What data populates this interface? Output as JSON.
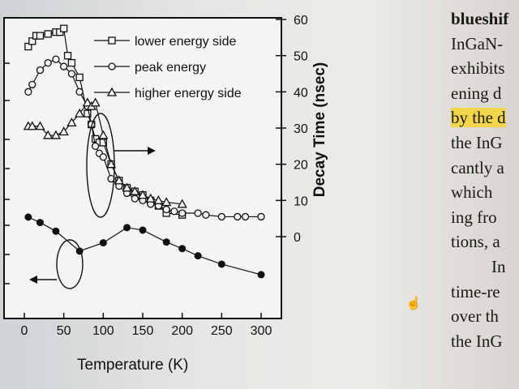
{
  "chart_data": {
    "type": "scatter",
    "title": "",
    "xlabel": "Temperature (K)",
    "ylabel_right": "Decay Time (nsec)",
    "xlim": [
      -10,
      330
    ],
    "ylim_right": [
      -10,
      60
    ],
    "x_ticks": [
      0,
      50,
      100,
      150,
      200,
      250,
      300
    ],
    "y_right_ticks": [
      0,
      10,
      20,
      30,
      40,
      50,
      60
    ],
    "legend_position": "top-right",
    "series": [
      {
        "name": "lower energy side",
        "marker": "square",
        "axis": "right",
        "x": [
          5,
          10,
          15,
          20,
          30,
          40,
          45,
          50,
          55,
          60,
          70,
          80,
          85,
          90,
          95,
          100,
          110,
          120,
          130,
          140,
          150,
          160,
          170,
          180,
          200
        ],
        "y": [
          52.5,
          54,
          55.5,
          55.5,
          56,
          56.5,
          56.5,
          57.5,
          50,
          48,
          44,
          34,
          31,
          27,
          26,
          26,
          20,
          15.5,
          13.5,
          12.5,
          11.5,
          10,
          8.5,
          6.5,
          6
        ]
      },
      {
        "name": "peak energy",
        "marker": "circle",
        "axis": "right",
        "x": [
          5,
          10,
          20,
          30,
          40,
          50,
          60,
          70,
          80,
          85,
          90,
          95,
          100,
          110,
          120,
          130,
          140,
          150,
          160,
          170,
          180,
          190,
          200,
          220,
          230,
          250,
          270,
          280,
          300
        ],
        "y": [
          40,
          42,
          46,
          48,
          49,
          47,
          45,
          40,
          36,
          31,
          25,
          23,
          22,
          16,
          14,
          12,
          10.5,
          10,
          9,
          8.5,
          7.5,
          7,
          6.5,
          6.5,
          6,
          5.5,
          5.5,
          5.5,
          5.5
        ]
      },
      {
        "name": "higher energy side",
        "marker": "triangle",
        "axis": "right",
        "x": [
          5,
          10,
          20,
          30,
          40,
          50,
          60,
          70,
          80,
          85,
          90,
          100,
          110,
          120,
          130,
          140,
          150,
          160,
          170,
          180,
          200
        ],
        "y": [
          30.5,
          30.5,
          30.5,
          28,
          28,
          29,
          31.5,
          34,
          37,
          36,
          37,
          28,
          20,
          15.5,
          13.5,
          12.5,
          11.5,
          10.5,
          10,
          9.5,
          9
        ]
      },
      {
        "name": "",
        "marker": "filled-circle",
        "axis": "left",
        "x": [
          5,
          20,
          40,
          70,
          90,
          100,
          110,
          130,
          150,
          170,
          200,
          220,
          250,
          300
        ],
        "y": [
          266,
          274,
          286,
          330,
          320,
          302,
          288,
          286,
          306,
          316,
          328,
          338,
          370,
          0
        ],
        "y_pixels_note": ""
      }
    ],
    "filled_series": {
      "x": [
        5,
        20,
        40,
        70,
        100,
        130,
        150,
        180,
        200,
        220,
        250,
        300
      ],
      "y": [
        5.4,
        3.9,
        1.5,
        -4.0,
        -1.7,
        2.5,
        1.8,
        -1.5,
        -3.3,
        -5.3,
        -7.6,
        -10.5
      ]
    },
    "annotations": [
      {
        "type": "ellipse-with-arrow",
        "target": "decay-time curves",
        "arrow_direction": "right"
      },
      {
        "type": "ellipse-with-arrow",
        "target": "filled-circle curve",
        "arrow_direction": "left"
      }
    ]
  },
  "book_text": {
    "lines": [
      {
        "text": "blueshif",
        "highlight": false,
        "bold": true
      },
      {
        "text": "InGaN-",
        "highlight": false
      },
      {
        "text": "exhibits",
        "highlight": false
      },
      {
        "text": "ening d",
        "highlight": false
      },
      {
        "text": "by the d",
        "highlight": true
      },
      {
        "text": "the InG",
        "highlight": false
      },
      {
        "text": "cantly a",
        "highlight": false
      },
      {
        "text": "which",
        "highlight": false
      },
      {
        "text": "ing fro",
        "highlight": false
      },
      {
        "text": "tions, a",
        "highlight": false
      },
      {
        "text": "In",
        "highlight": false,
        "indent": true
      },
      {
        "text": "time-re",
        "highlight": false
      },
      {
        "text": "over th",
        "highlight": false
      },
      {
        "text": "the InG",
        "highlight": false
      }
    ]
  },
  "icons": {
    "cursor": "hand-cursor-icon"
  },
  "colors": {
    "highlight": "#f2d64a",
    "ink": "#111111"
  }
}
